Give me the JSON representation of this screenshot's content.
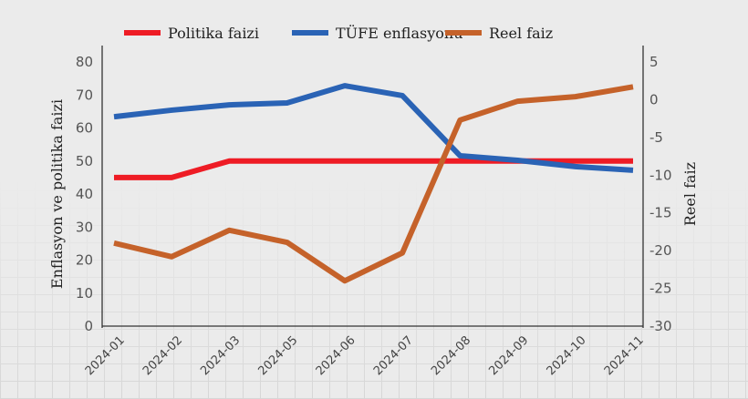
{
  "chart_data": {
    "type": "line",
    "categories": [
      "2024-01",
      "2024-02",
      "2024-03",
      "2024-05",
      "2024-06",
      "2024-07",
      "2024-08",
      "2024-09",
      "2024-10",
      "2024-11"
    ],
    "ylabel": "Enflasyon ve politika faizi",
    "y2label": "Reel faiz",
    "ylim": [
      0,
      80
    ],
    "y2lim": [
      -30,
      5
    ],
    "yticks": [
      0,
      10,
      20,
      30,
      40,
      50,
      60,
      70,
      80
    ],
    "y2ticks": [
      5,
      0,
      -5,
      -10,
      -15,
      -20,
      -25,
      -30
    ],
    "legend_position": "top",
    "series": [
      {
        "name": "Politika faizi",
        "axis": "left",
        "color": "#ee1c25",
        "values": [
          45,
          45,
          50,
          50,
          50,
          50,
          50,
          50,
          50,
          50
        ]
      },
      {
        "name": "TÜFE enflasyonu",
        "axis": "left",
        "color": "#2a63b5",
        "values": [
          63.4,
          65.4,
          67.0,
          67.6,
          72.8,
          69.8,
          51.6,
          50.2,
          48.3,
          47.2
        ]
      },
      {
        "name": "Reel faiz",
        "axis": "right",
        "color": "#c5622a",
        "values": [
          -19.0,
          -20.8,
          -17.3,
          -18.9,
          -24.0,
          -20.3,
          -2.7,
          -0.2,
          0.4,
          1.7
        ]
      }
    ]
  }
}
